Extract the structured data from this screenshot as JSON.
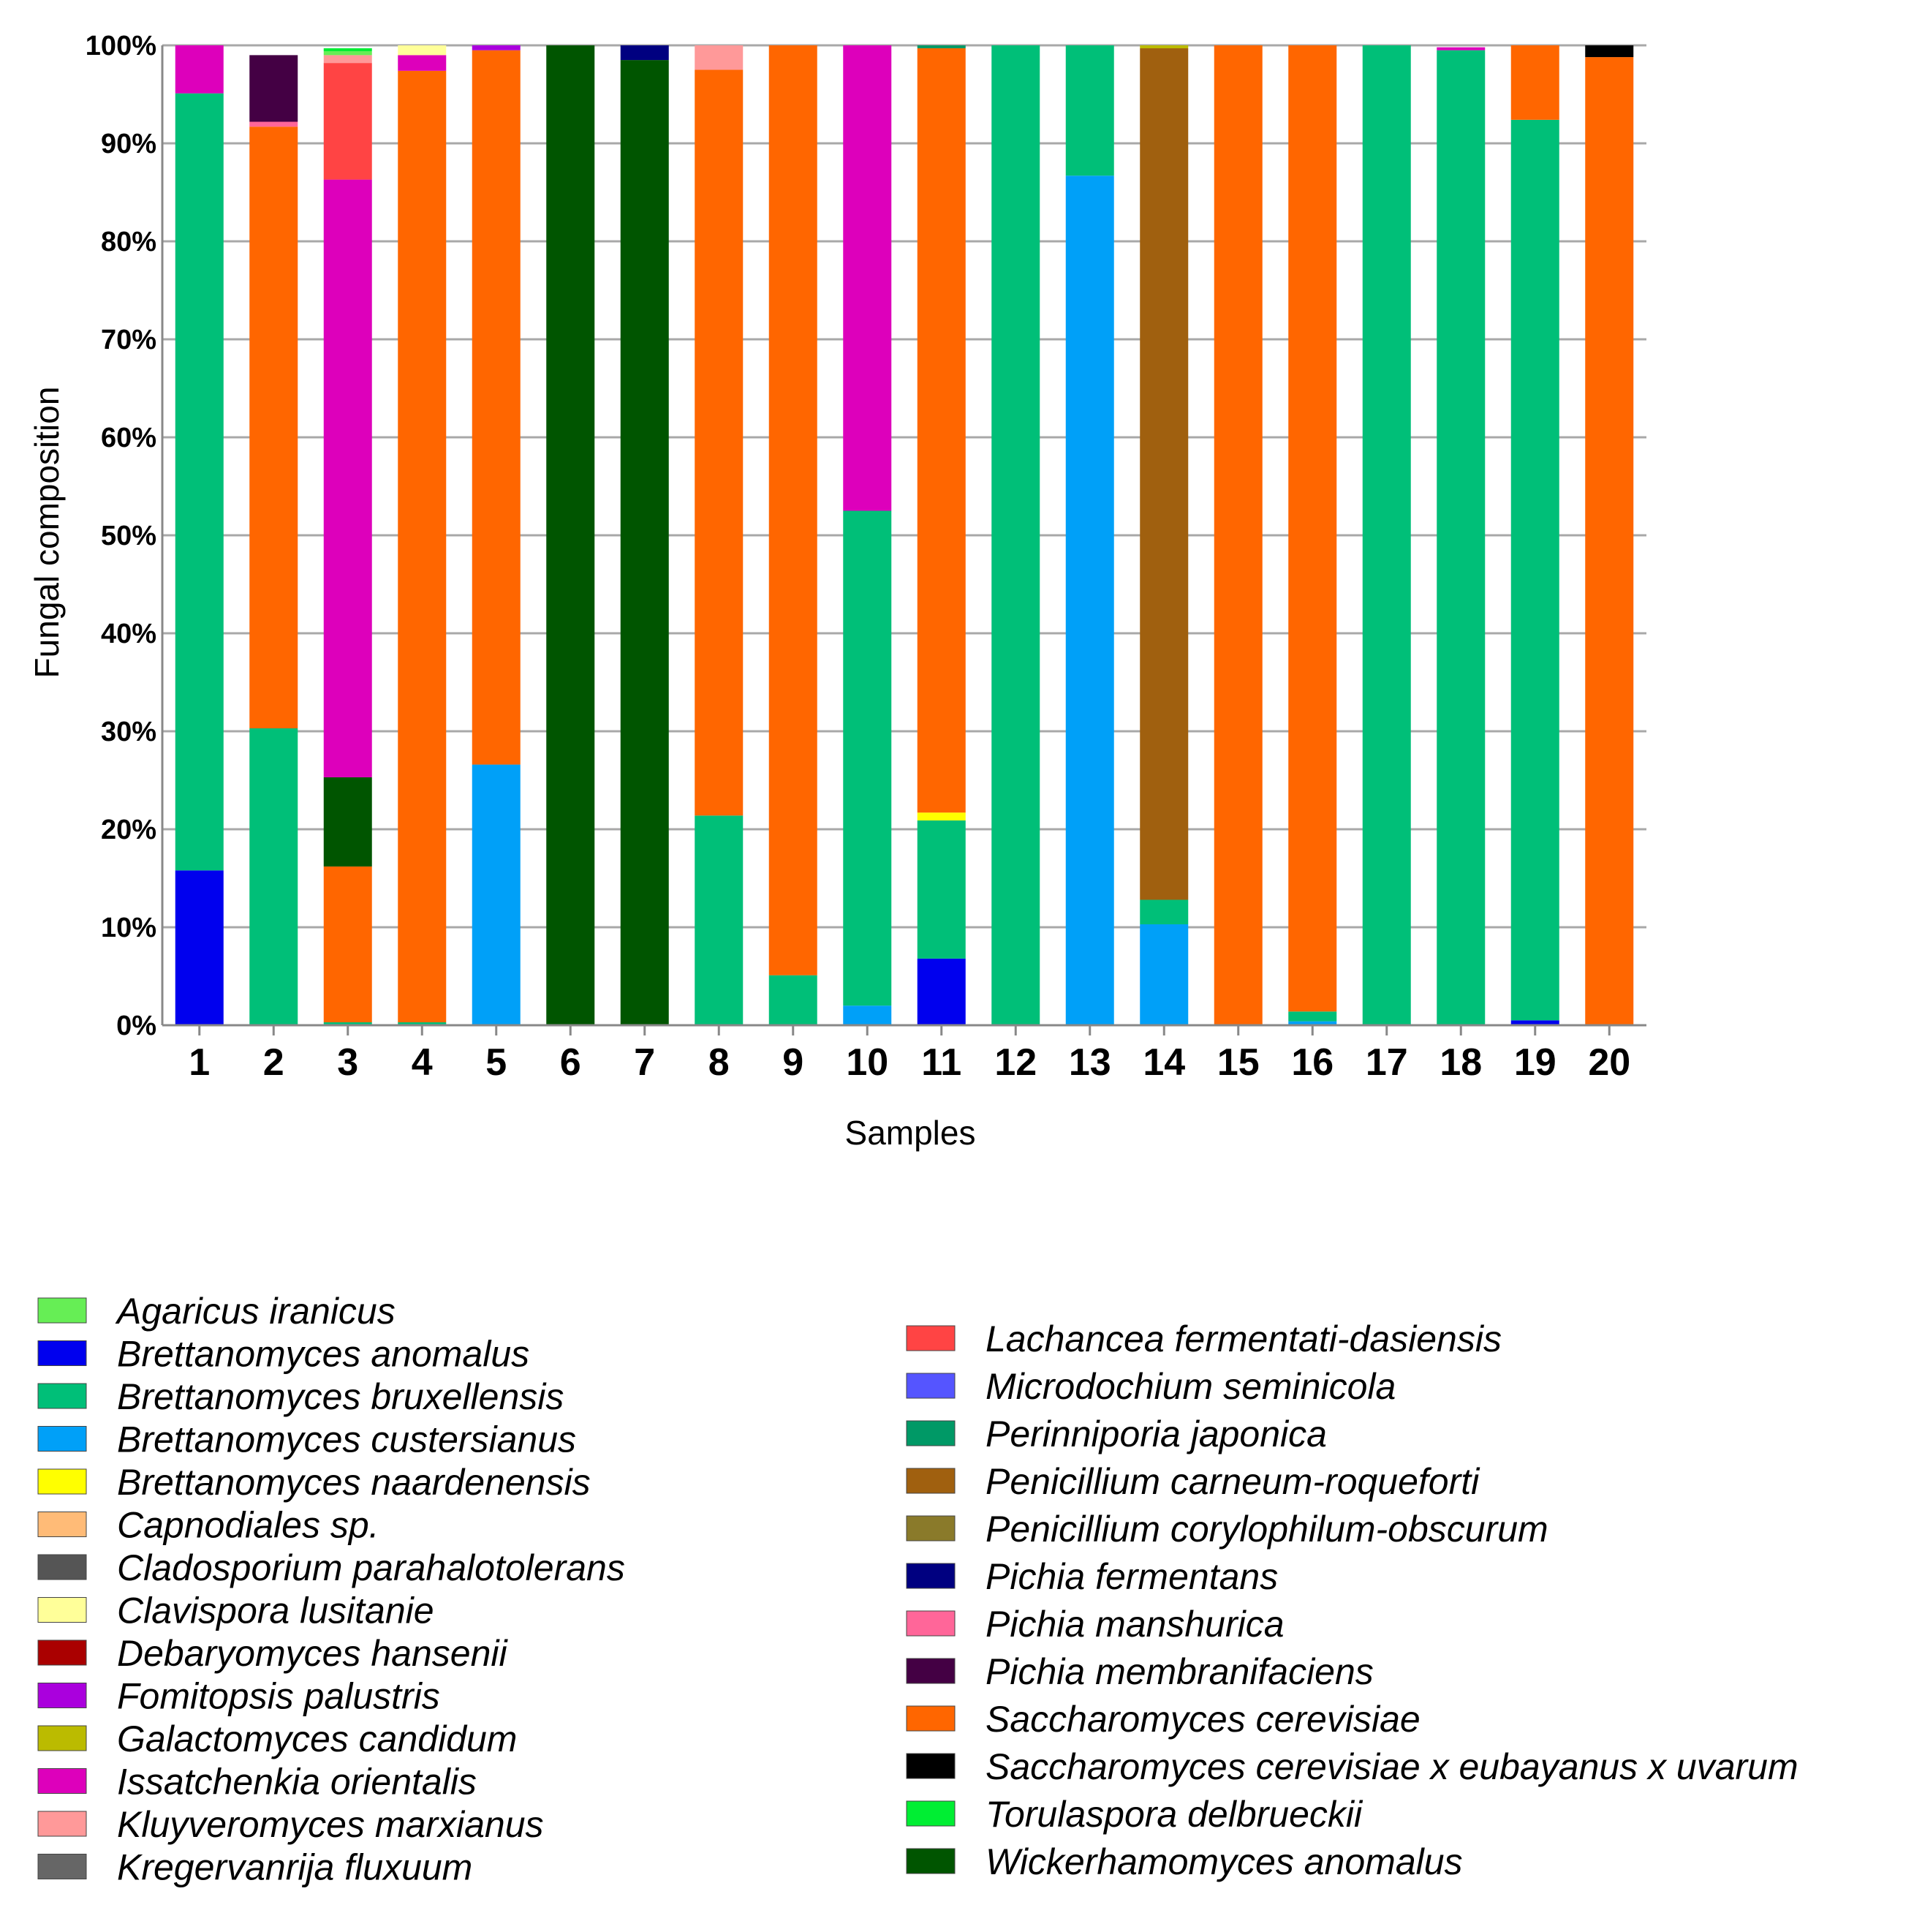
{
  "chart_data": {
    "type": "bar",
    "stacked": true,
    "normalized": true,
    "title": "",
    "xlabel": "Samples",
    "ylabel": "Fungal composition",
    "ylim": [
      0,
      100
    ],
    "yticks": [
      "0%",
      "10%",
      "20%",
      "30%",
      "40%",
      "50%",
      "60%",
      "70%",
      "80%",
      "90%",
      "100%"
    ],
    "categories": [
      "1",
      "2",
      "3",
      "4",
      "5",
      "6",
      "7",
      "8",
      "9",
      "10",
      "11",
      "12",
      "13",
      "14",
      "15",
      "16",
      "17",
      "18",
      "19",
      "20"
    ],
    "grid": "horizontal",
    "legend_position": "bottom",
    "series": [
      {
        "name": "Agaricus iranicus",
        "color": "#66ee55",
        "values": [
          0,
          0,
          0.4,
          0,
          0,
          0,
          0,
          0,
          0,
          0,
          0,
          0,
          0,
          0,
          0,
          0,
          0,
          0,
          0,
          0
        ]
      },
      {
        "name": "Brettanomyces anomalus",
        "color": "#0000ee",
        "values": [
          15.8,
          0,
          0,
          0,
          0,
          0,
          0,
          0,
          0,
          0,
          6.8,
          0,
          0,
          0,
          0,
          0,
          0,
          0,
          0.5,
          0
        ]
      },
      {
        "name": "Brettanomyces bruxellensis",
        "color": "#00bf78",
        "values": [
          79.3,
          30.3,
          0.3,
          0.3,
          0,
          0,
          0,
          21.4,
          5.1,
          50.5,
          14.1,
          100,
          13.3,
          2.5,
          0,
          1.0,
          100,
          99.5,
          91.9,
          0
        ]
      },
      {
        "name": "Brettanomyces custersianus",
        "color": "#00a0f8",
        "values": [
          0,
          0,
          0,
          0,
          26.6,
          0,
          0,
          0,
          0,
          2.0,
          0,
          0,
          86.7,
          10.3,
          0,
          0.4,
          0,
          0,
          0,
          0
        ]
      },
      {
        "name": "Brettanomyces naardenensis",
        "color": "#ffff00",
        "values": [
          0,
          0,
          0,
          0,
          0,
          0,
          0,
          0,
          0,
          0,
          0.8,
          0,
          0,
          0,
          0,
          0,
          0,
          0,
          0,
          0
        ]
      },
      {
        "name": "Capnodiales sp.",
        "color": "#ffbb77",
        "values": [
          0,
          0,
          0,
          0,
          0,
          0,
          0,
          0,
          0,
          0,
          0,
          0,
          0,
          0,
          0,
          0,
          0,
          0,
          0,
          0
        ]
      },
      {
        "name": "Cladosporium parahalotolerans",
        "color": "#555555",
        "values": [
          0,
          0,
          0,
          0,
          0,
          0,
          0,
          0,
          0,
          0,
          0,
          0,
          0,
          0,
          0,
          0,
          0,
          0,
          0,
          0
        ]
      },
      {
        "name": "Clavispora lusitanie",
        "color": "#ffff99",
        "values": [
          0,
          0,
          0,
          1.0,
          0,
          0,
          0,
          0,
          0,
          0,
          0,
          0,
          0,
          0,
          0,
          0,
          0,
          0,
          0,
          0
        ]
      },
      {
        "name": "Debaryomyces hansenii",
        "color": "#aa0000",
        "values": [
          0,
          0,
          0,
          0,
          0,
          0,
          0,
          0,
          0,
          0,
          0,
          0,
          0,
          0,
          0,
          0,
          0,
          0,
          0,
          0
        ]
      },
      {
        "name": "Fomitopsis palustris",
        "color": "#aa00dd",
        "values": [
          0,
          0,
          0,
          0,
          0.5,
          0,
          0,
          0,
          0,
          0,
          0,
          0,
          0,
          0,
          0,
          0,
          0,
          0,
          0,
          0
        ]
      },
      {
        "name": "Galactomyces candidum",
        "color": "#bbbb00",
        "values": [
          0,
          0,
          0,
          0,
          0,
          0,
          0,
          0,
          0,
          0,
          0,
          0,
          0,
          0.3,
          0,
          0,
          0,
          0,
          0,
          0
        ]
      },
      {
        "name": "Issatchenkia orientalis",
        "color": "#dd00bb",
        "values": [
          4.9,
          0,
          61.0,
          1.6,
          0,
          0,
          0,
          0,
          0,
          47.5,
          0,
          0,
          0,
          0,
          0,
          0,
          0,
          0.3,
          0,
          0
        ]
      },
      {
        "name": "Kluyveromyces marxianus",
        "color": "#ff9999",
        "values": [
          0,
          0,
          0.8,
          0,
          0,
          0,
          0,
          2.5,
          0,
          0,
          0,
          0,
          0,
          0,
          0,
          0,
          0,
          0,
          0,
          0
        ]
      },
      {
        "name": "Kregervanrija fluxuum",
        "color": "#666666",
        "values": [
          0,
          0,
          0,
          0,
          0,
          0,
          0,
          0,
          0,
          0,
          0,
          0,
          0,
          0,
          0,
          0,
          0,
          0,
          0,
          0
        ]
      },
      {
        "name": "Lachancea fermentati-dasiensis",
        "color": "#ff4444",
        "values": [
          0,
          0,
          11.9,
          0,
          0,
          0,
          0,
          0,
          0,
          0,
          0,
          0,
          0,
          0,
          0,
          0,
          0,
          0,
          0,
          0
        ]
      },
      {
        "name": "Microdochium seminicola",
        "color": "#5555ff",
        "values": [
          0,
          0,
          0,
          0,
          0,
          0,
          0,
          0,
          0,
          0,
          0,
          0,
          0,
          0,
          0,
          0,
          0,
          0,
          0,
          0
        ]
      },
      {
        "name": "Perinniporia japonica",
        "color": "#009966",
        "values": [
          0,
          0,
          0,
          0,
          0,
          0,
          0,
          0,
          0,
          0,
          0.3,
          0,
          0,
          0,
          0,
          0,
          0,
          0,
          0,
          0
        ]
      },
      {
        "name": "Penicillium carneum-roqueforti",
        "color": "#a0600f",
        "values": [
          0,
          0,
          0,
          0,
          0,
          0,
          0,
          0,
          0,
          0,
          0,
          0,
          0,
          86.9,
          0,
          0,
          0,
          0,
          0,
          0
        ]
      },
      {
        "name": "Penicillium corylophilum-obscurum",
        "color": "#8a7a2a",
        "values": [
          0,
          0,
          0,
          0,
          0,
          0,
          0,
          0,
          0,
          0,
          0,
          0,
          0,
          0,
          0,
          0,
          0,
          0,
          0,
          0
        ]
      },
      {
        "name": "Pichia fermentans",
        "color": "#000080",
        "values": [
          0,
          0,
          0,
          0,
          0,
          0,
          1.5,
          0,
          0,
          0,
          0,
          0,
          0,
          0,
          0,
          0,
          0,
          0,
          0,
          0
        ]
      },
      {
        "name": "Pichia manshurica",
        "color": "#ff6699",
        "values": [
          0,
          0.5,
          0,
          0,
          0,
          0,
          0,
          0,
          0,
          0,
          0,
          0,
          0,
          0,
          0,
          0,
          0,
          0,
          0,
          0
        ]
      },
      {
        "name": "Pichia membranifaciens",
        "color": "#440044",
        "values": [
          0,
          6.8,
          0,
          0,
          0,
          0,
          0,
          0,
          0,
          0,
          0,
          0,
          0,
          0,
          0,
          0,
          0,
          0,
          0,
          0
        ]
      },
      {
        "name": "Saccharomyces cerevisiae",
        "color": "#ff6600",
        "values": [
          0,
          61.4,
          15.9,
          97.1,
          72.9,
          0,
          0,
          76.1,
          94.9,
          0,
          78.0,
          0,
          0,
          0,
          100,
          98.6,
          0,
          0,
          7.6,
          98.8
        ]
      },
      {
        "name": "Saccharomyces cerevisiae x eubayanus x uvarum",
        "color": "#000000",
        "values": [
          0,
          0,
          0,
          0,
          0,
          0,
          0,
          0,
          0,
          0,
          0,
          0,
          0,
          0,
          0,
          0,
          0,
          0,
          0,
          1.2
        ]
      },
      {
        "name": "Torulaspora delbrueckii",
        "color": "#00ee33",
        "values": [
          0,
          0,
          0.3,
          0,
          0,
          0,
          0,
          0,
          0,
          0,
          0,
          0,
          0,
          0,
          0,
          0,
          0,
          0,
          0,
          0
        ]
      },
      {
        "name": "Wickerhamomyces anomalus",
        "color": "#005500",
        "values": [
          0,
          0,
          9.1,
          0,
          0,
          100,
          98.5,
          0,
          0,
          0,
          0,
          0,
          0,
          0,
          0,
          0,
          0,
          0,
          0,
          0
        ]
      }
    ],
    "stack_order": [
      [
        "Brettanomyces anomalus",
        "Brettanomyces bruxellensis",
        "Issatchenkia orientalis"
      ],
      [
        "Brettanomyces bruxellensis",
        "Saccharomyces cerevisiae",
        "Pichia manshurica",
        "Pichia membranifaciens",
        "Cladosporium parahalotolerans"
      ],
      [
        "Brettanomyces bruxellensis",
        "Saccharomyces cerevisiae",
        "Wickerhamomyces anomalus",
        "Debaryomyces hansenii",
        "Issatchenkia orientalis",
        "Lachancea fermentati-dasiensis",
        "Kluyveromyces marxianus",
        "Capnodiales sp.",
        "Agaricus iranicus",
        "Torulaspora delbrueckii"
      ],
      [
        "Brettanomyces bruxellensis",
        "Saccharomyces cerevisiae",
        "Issatchenkia orientalis",
        "Clavispora lusitanie"
      ],
      [
        "Brettanomyces custersianus",
        "Saccharomyces cerevisiae",
        "Fomitopsis palustris"
      ],
      [
        "Wickerhamomyces anomalus"
      ],
      [
        "Wickerhamomyces anomalus",
        "Pichia fermentans"
      ],
      [
        "Brettanomyces bruxellensis",
        "Saccharomyces cerevisiae",
        "Kluyveromyces marxianus"
      ],
      [
        "Brettanomyces bruxellensis",
        "Saccharomyces cerevisiae"
      ],
      [
        "Brettanomyces custersianus",
        "Brettanomyces bruxellensis",
        "Issatchenkia orientalis"
      ],
      [
        "Brettanomyces anomalus",
        "Brettanomyces bruxellensis",
        "Brettanomyces naardenensis",
        "Saccharomyces cerevisiae",
        "Perinniporia japonica"
      ],
      [
        "Brettanomyces bruxellensis"
      ],
      [
        "Brettanomyces custersianus",
        "Brettanomyces bruxellensis"
      ],
      [
        "Brettanomyces custersianus",
        "Brettanomyces bruxellensis",
        "Penicillium carneum-roqueforti",
        "Galactomyces candidum"
      ],
      [
        "Saccharomyces cerevisiae"
      ],
      [
        "Brettanomyces custersianus",
        "Brettanomyces bruxellensis",
        "Saccharomyces cerevisiae"
      ],
      [
        "Brettanomyces bruxellensis"
      ],
      [
        "Brettanomyces bruxellensis",
        "Issatchenkia orientalis"
      ],
      [
        "Brettanomyces anomalus",
        "Brettanomyces bruxellensis",
        "Saccharomyces cerevisiae"
      ],
      [
        "Saccharomyces cerevisiae",
        "Saccharomyces cerevisiae x eubayanus x uvarum"
      ]
    ],
    "legend_columns": [
      [
        "Agaricus iranicus",
        "Brettanomyces anomalus",
        "Brettanomyces bruxellensis",
        "Brettanomyces custersianus",
        "Brettanomyces naardenensis",
        "Capnodiales sp.",
        "Cladosporium parahalotolerans",
        "Clavispora lusitanie",
        "Debaryomyces hansenii",
        "Fomitopsis palustris",
        "Galactomyces candidum",
        "Issatchenkia orientalis",
        "Kluyveromyces marxianus",
        "Kregervanrija fluxuum"
      ],
      [
        "Lachancea fermentati-dasiensis",
        "Microdochium seminicola",
        "Perinniporia japonica",
        "Penicillium carneum-roqueforti",
        "Penicillium corylophilum-obscurum",
        "Pichia fermentans",
        "Pichia manshurica",
        "Pichia membranifaciens",
        "Saccharomyces cerevisiae",
        "Saccharomyces cerevisiae x eubayanus x uvarum",
        "Torulaspora delbrueckii",
        "Wickerhamomyces anomalus"
      ]
    ]
  }
}
